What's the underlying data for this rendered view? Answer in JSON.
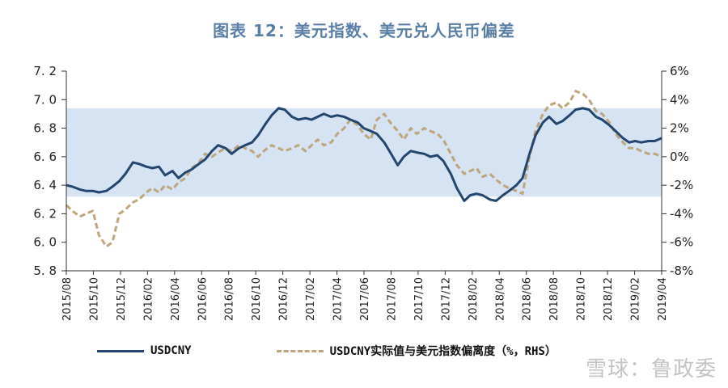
{
  "chart_data": {
    "type": "line",
    "title": "图表 12：美元指数、美元兑人民币偏差",
    "xlabel": "",
    "ylabel": "",
    "ylim": [
      5.8,
      7.2
    ],
    "y2lim": [
      -8,
      6
    ],
    "yticks": [
      "7. 2",
      "7. 0",
      "6. 8",
      "6. 6",
      "6. 4",
      "6. 2",
      "6. 0",
      "5. 8"
    ],
    "y2ticks": [
      "6%",
      "4%",
      "2%",
      "0%",
      "-2%",
      "-4%",
      "-6%",
      "-8%"
    ],
    "x_tick_labels": [
      "2015/08",
      "2015/10",
      "2015/12",
      "2016/02",
      "2016/04",
      "2016/06",
      "2016/08",
      "2016/10",
      "2016/12",
      "2017/02",
      "2017/04",
      "2017/06",
      "2017/08",
      "2017/10",
      "2017/12",
      "2018/02",
      "2018/04",
      "2018/06",
      "2018/08",
      "2018/10",
      "2018/12",
      "2019/02",
      "2019/04"
    ],
    "shaded_band": {
      "from": 6.32,
      "to": 6.94,
      "color": "#d5e3f3"
    },
    "series": [
      {
        "name": "USDCNY",
        "axis": "left",
        "color": "#23466e",
        "style": "solid",
        "x": [
          "2015-08-01",
          "2015-08-15",
          "2015-09-01",
          "2015-09-15",
          "2015-10-01",
          "2015-10-15",
          "2015-11-01",
          "2015-11-15",
          "2015-12-01",
          "2015-12-15",
          "2016-01-01",
          "2016-01-15",
          "2016-02-01",
          "2016-02-15",
          "2016-03-01",
          "2016-03-15",
          "2016-04-01",
          "2016-04-15",
          "2016-05-01",
          "2016-05-15",
          "2016-06-01",
          "2016-06-15",
          "2016-07-01",
          "2016-07-15",
          "2016-08-01",
          "2016-08-15",
          "2016-09-01",
          "2016-09-15",
          "2016-10-01",
          "2016-10-15",
          "2016-11-01",
          "2016-11-15",
          "2016-12-01",
          "2016-12-15",
          "2017-01-01",
          "2017-01-15",
          "2017-02-01",
          "2017-02-15",
          "2017-03-01",
          "2017-03-15",
          "2017-04-01",
          "2017-04-15",
          "2017-05-01",
          "2017-05-15",
          "2017-06-01",
          "2017-06-15",
          "2017-07-01",
          "2017-07-15",
          "2017-08-01",
          "2017-08-15",
          "2017-09-01",
          "2017-09-15",
          "2017-10-01",
          "2017-10-15",
          "2017-11-01",
          "2017-11-15",
          "2017-12-01",
          "2017-12-15",
          "2018-01-01",
          "2018-01-15",
          "2018-02-01",
          "2018-02-15",
          "2018-03-01",
          "2018-03-15",
          "2018-04-01",
          "2018-04-15",
          "2018-05-01",
          "2018-05-15",
          "2018-06-01",
          "2018-06-15",
          "2018-07-01",
          "2018-07-15",
          "2018-08-01",
          "2018-08-15",
          "2018-09-01",
          "2018-09-15",
          "2018-10-01",
          "2018-10-15",
          "2018-11-01",
          "2018-11-15",
          "2018-12-01",
          "2018-12-15",
          "2019-01-01",
          "2019-01-15",
          "2019-02-01",
          "2019-02-15",
          "2019-03-01",
          "2019-03-15",
          "2019-04-01",
          "2019-04-15",
          "2019-05-01"
        ],
        "values": [
          6.4,
          6.39,
          6.37,
          6.36,
          6.36,
          6.35,
          6.36,
          6.39,
          6.43,
          6.48,
          6.56,
          6.55,
          6.53,
          6.52,
          6.53,
          6.47,
          6.5,
          6.45,
          6.49,
          6.51,
          6.55,
          6.58,
          6.64,
          6.68,
          6.66,
          6.62,
          6.66,
          6.68,
          6.7,
          6.75,
          6.83,
          6.89,
          6.94,
          6.93,
          6.88,
          6.86,
          6.87,
          6.86,
          6.88,
          6.9,
          6.88,
          6.89,
          6.88,
          6.86,
          6.84,
          6.8,
          6.78,
          6.76,
          6.7,
          6.63,
          6.54,
          6.6,
          6.64,
          6.63,
          6.62,
          6.6,
          6.61,
          6.57,
          6.48,
          6.38,
          6.29,
          6.33,
          6.34,
          6.33,
          6.3,
          6.29,
          6.33,
          6.36,
          6.4,
          6.45,
          6.62,
          6.75,
          6.84,
          6.88,
          6.83,
          6.85,
          6.89,
          6.93,
          6.94,
          6.93,
          6.88,
          6.86,
          6.82,
          6.78,
          6.73,
          6.7,
          6.71,
          6.7,
          6.71,
          6.71,
          6.73
        ]
      },
      {
        "name": "USDCNY实际值与美元指数偏离度（%，RHS）",
        "axis": "right",
        "color": "#bfa57b",
        "style": "dashed",
        "x": [
          "2015-08-01",
          "2015-08-15",
          "2015-09-01",
          "2015-09-15",
          "2015-10-01",
          "2015-10-15",
          "2015-11-01",
          "2015-11-15",
          "2015-12-01",
          "2015-12-15",
          "2016-01-01",
          "2016-01-15",
          "2016-02-01",
          "2016-02-15",
          "2016-03-01",
          "2016-03-15",
          "2016-04-01",
          "2016-04-15",
          "2016-05-01",
          "2016-05-15",
          "2016-06-01",
          "2016-06-15",
          "2016-07-01",
          "2016-07-15",
          "2016-08-01",
          "2016-08-15",
          "2016-09-01",
          "2016-09-15",
          "2016-10-01",
          "2016-10-15",
          "2016-11-01",
          "2016-11-15",
          "2016-12-01",
          "2016-12-15",
          "2017-01-01",
          "2017-01-15",
          "2017-02-01",
          "2017-02-15",
          "2017-03-01",
          "2017-03-15",
          "2017-04-01",
          "2017-04-15",
          "2017-05-01",
          "2017-05-15",
          "2017-06-01",
          "2017-06-15",
          "2017-07-01",
          "2017-07-15",
          "2017-08-01",
          "2017-08-15",
          "2017-09-01",
          "2017-09-15",
          "2017-10-01",
          "2017-10-15",
          "2017-11-01",
          "2017-11-15",
          "2017-12-01",
          "2017-12-15",
          "2018-01-01",
          "2018-01-15",
          "2018-02-01",
          "2018-02-15",
          "2018-03-01",
          "2018-03-15",
          "2018-04-01",
          "2018-04-15",
          "2018-05-01",
          "2018-05-15",
          "2018-06-01",
          "2018-06-15",
          "2018-07-01",
          "2018-07-15",
          "2018-08-01",
          "2018-08-15",
          "2018-09-01",
          "2018-09-15",
          "2018-10-01",
          "2018-10-15",
          "2018-11-01",
          "2018-11-15",
          "2018-12-01",
          "2018-12-15",
          "2019-01-01",
          "2019-01-15",
          "2019-02-01",
          "2019-02-15",
          "2019-03-01",
          "2019-03-15",
          "2019-04-01",
          "2019-04-15",
          "2019-05-01"
        ],
        "values": [
          -3.4,
          -3.8,
          -4.2,
          -4.0,
          -3.8,
          -5.5,
          -6.3,
          -6.0,
          -4.0,
          -3.7,
          -3.2,
          -3.0,
          -2.5,
          -2.2,
          -2.5,
          -2.0,
          -2.3,
          -1.8,
          -1.5,
          -0.8,
          -0.4,
          0.2,
          0.0,
          0.3,
          0.6,
          0.4,
          0.8,
          0.6,
          0.4,
          0.0,
          0.5,
          0.8,
          0.6,
          0.4,
          0.6,
          0.8,
          0.4,
          0.8,
          1.2,
          0.8,
          1.0,
          1.6,
          2.0,
          2.6,
          2.2,
          1.6,
          1.2,
          2.6,
          3.0,
          2.4,
          1.8,
          1.2,
          2.0,
          1.6,
          2.0,
          1.8,
          1.6,
          1.2,
          0.2,
          -0.6,
          -1.2,
          -1.0,
          -0.8,
          -1.4,
          -1.2,
          -1.6,
          -2.0,
          -2.2,
          -2.4,
          -2.6,
          0.0,
          1.8,
          3.0,
          3.6,
          3.8,
          3.4,
          3.8,
          4.6,
          4.4,
          4.0,
          3.2,
          3.0,
          2.4,
          1.6,
          1.0,
          0.6,
          0.6,
          0.4,
          0.2,
          0.2,
          0.0
        ]
      }
    ]
  },
  "legend": {
    "series1_label": "USDCNY",
    "series2_label": "USDCNY实际值与美元指数偏离度（%，RHS）"
  },
  "watermark": "雪球：鲁政委"
}
